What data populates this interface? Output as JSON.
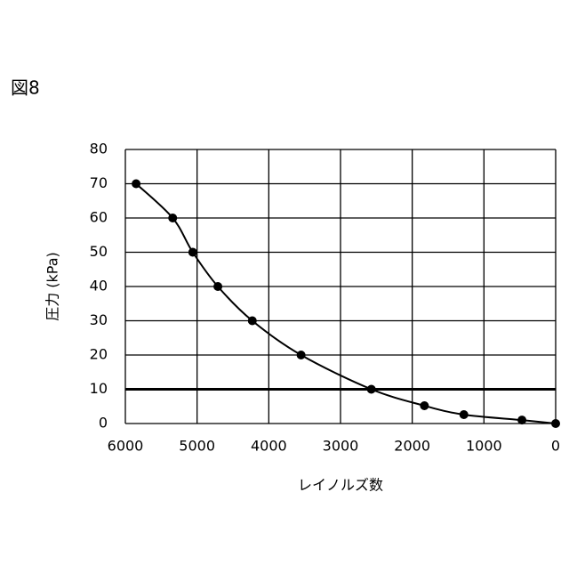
{
  "figure_label": "図8",
  "chart_data": {
    "type": "line",
    "x_label": "レイノルズ数",
    "y_label": "圧力 (kPa)",
    "x": [
      5850,
      5340,
      5060,
      4710,
      4230,
      3550,
      2570,
      1830,
      1280,
      470,
      0
    ],
    "values": [
      70,
      60,
      50,
      40,
      30,
      20,
      10,
      5.2,
      2.6,
      1.0,
      0
    ],
    "color": "#000000",
    "xlim": [
      6000,
      0
    ],
    "xticks": [
      6000,
      5000,
      4000,
      3000,
      2000,
      1000,
      0
    ],
    "ylim": [
      0,
      80
    ],
    "yticks": [
      0,
      10,
      20,
      30,
      40,
      50,
      60,
      70,
      80
    ],
    "grid": true,
    "reference_line": 10
  }
}
